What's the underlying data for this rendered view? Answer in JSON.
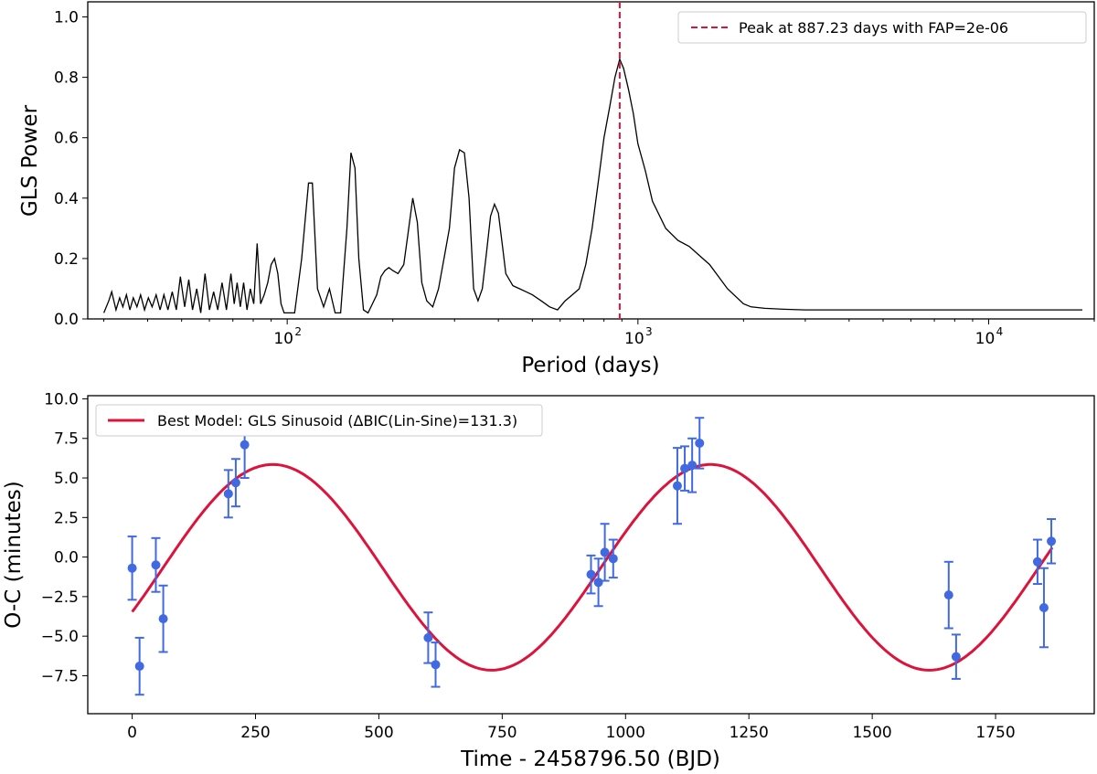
{
  "chart_data": [
    {
      "type": "line",
      "xscale": "log",
      "xlim": [
        27,
        20000
      ],
      "ylim": [
        0.0,
        1.05
      ],
      "ylabel": "GLS Power",
      "xlabel": "Period (days)",
      "yticks": [
        "0.0",
        "0.2",
        "0.4",
        "0.6",
        "0.8",
        "1.0"
      ],
      "xticks": [
        {
          "base": "10",
          "exp": "2",
          "value": 100
        },
        {
          "base": "10",
          "exp": "3",
          "value": 1000
        },
        {
          "base": "10",
          "exp": "4",
          "value": 10000
        }
      ],
      "grid": false,
      "legend": {
        "position": "top-right",
        "entries": [
          "Peak at 887.23 days with FAP=2e-06"
        ]
      },
      "peak_marker": {
        "period": 887.23,
        "style": "dashed",
        "color": "#dc143c"
      },
      "series": [
        {
          "color": "#000000",
          "x": [
            30,
            31,
            31.6,
            32.5,
            33.3,
            34,
            34.8,
            35.6,
            36.4,
            37.3,
            38.2,
            39.2,
            40.2,
            41.2,
            42.3,
            43.4,
            44.5,
            45.7,
            47,
            48.3,
            49.6,
            51,
            52.4,
            53.7,
            55.2,
            56.7,
            58.3,
            60,
            61.7,
            63.4,
            65.2,
            67.1,
            69.1,
            70.6,
            72,
            73.5,
            75.1,
            76.8,
            78.5,
            80.3,
            82.1,
            84,
            86,
            88,
            90,
            92,
            94,
            96,
            98,
            100,
            105,
            110,
            115,
            118,
            122,
            127,
            132,
            137,
            142,
            148,
            152,
            156,
            160,
            165,
            170,
            175,
            180,
            185,
            190,
            195,
            200,
            207,
            215,
            222,
            228,
            235,
            242,
            250,
            260,
            270,
            280,
            290,
            300,
            310,
            320,
            330,
            340,
            350,
            360,
            370,
            380,
            390,
            400,
            410,
            420,
            440,
            460,
            480,
            500,
            530,
            560,
            590,
            620,
            650,
            680,
            710,
            740,
            770,
            800,
            830,
            860,
            887,
            910,
            940,
            970,
            1000,
            1050,
            1100,
            1200,
            1300,
            1400,
            1600,
            1800,
            2000,
            2100,
            2300,
            2600,
            3000,
            5000,
            10000,
            18500
          ],
          "y": [
            0.02,
            0.06,
            0.09,
            0.03,
            0.07,
            0.04,
            0.08,
            0.03,
            0.07,
            0.04,
            0.08,
            0.03,
            0.07,
            0.04,
            0.08,
            0.03,
            0.08,
            0.03,
            0.09,
            0.03,
            0.14,
            0.04,
            0.13,
            0.03,
            0.1,
            0.02,
            0.15,
            0.03,
            0.09,
            0.03,
            0.12,
            0.03,
            0.15,
            0.05,
            0.12,
            0.04,
            0.12,
            0.03,
            0.1,
            0.05,
            0.25,
            0.05,
            0.08,
            0.12,
            0.18,
            0.2,
            0.15,
            0.05,
            0.02,
            0.02,
            0.02,
            0.2,
            0.45,
            0.45,
            0.1,
            0.04,
            0.1,
            0.02,
            0.02,
            0.3,
            0.55,
            0.5,
            0.2,
            0.03,
            0.02,
            0.05,
            0.08,
            0.14,
            0.16,
            0.17,
            0.16,
            0.15,
            0.18,
            0.3,
            0.4,
            0.32,
            0.12,
            0.06,
            0.04,
            0.1,
            0.2,
            0.3,
            0.5,
            0.56,
            0.55,
            0.4,
            0.1,
            0.06,
            0.1,
            0.22,
            0.34,
            0.38,
            0.35,
            0.25,
            0.15,
            0.11,
            0.1,
            0.09,
            0.08,
            0.06,
            0.04,
            0.03,
            0.06,
            0.08,
            0.1,
            0.18,
            0.3,
            0.45,
            0.6,
            0.7,
            0.8,
            0.86,
            0.83,
            0.76,
            0.68,
            0.58,
            0.49,
            0.39,
            0.3,
            0.26,
            0.24,
            0.18,
            0.1,
            0.05,
            0.04,
            0.035,
            0.032,
            0.03,
            0.03,
            0.03,
            0.03
          ]
        }
      ]
    },
    {
      "type": "scatter",
      "xlim": [
        -90,
        1950
      ],
      "ylim": [
        -9.9,
        10.2
      ],
      "xlabel": "Time - 2458796.50 (BJD)",
      "ylabel": "O-C (minutes)",
      "xticks": [
        "0",
        "250",
        "500",
        "750",
        "1000",
        "1250",
        "1500",
        "1750"
      ],
      "yticks": [
        "−7.5",
        "−5.0",
        "−2.5",
        "0.0",
        "2.5",
        "5.0",
        "7.5",
        "10.0"
      ],
      "grid": false,
      "legend": {
        "position": "top-left",
        "entries": [
          "Best Model: GLS Sinusoid (ΔBIC(Lin-Sine)=131.3)"
        ]
      },
      "model": {
        "type": "sinusoid",
        "color": "#dc143c",
        "amplitude": 6.5,
        "offset": -0.65,
        "period_days": 887.23,
        "peak_time": 285,
        "x_range": [
          0,
          1865
        ]
      },
      "series": [
        {
          "type": "scatter-errorbar",
          "color": "#4169e1",
          "points": [
            {
              "x": 0,
              "y": -0.7,
              "err": 2.0
            },
            {
              "x": 15,
              "y": -6.9,
              "err": 1.8
            },
            {
              "x": 48,
              "y": -0.5,
              "err": 1.7
            },
            {
              "x": 63,
              "y": -3.9,
              "err": 2.1
            },
            {
              "x": 195,
              "y": 4.0,
              "err": 1.5
            },
            {
              "x": 210,
              "y": 4.7,
              "err": 1.5
            },
            {
              "x": 228,
              "y": 7.1,
              "err": 2.1
            },
            {
              "x": 600,
              "y": -5.1,
              "err": 1.6
            },
            {
              "x": 615,
              "y": -6.8,
              "err": 1.4
            },
            {
              "x": 930,
              "y": -1.1,
              "err": 1.2
            },
            {
              "x": 945,
              "y": -1.6,
              "err": 1.5
            },
            {
              "x": 958,
              "y": 0.3,
              "err": 1.8
            },
            {
              "x": 975,
              "y": -0.1,
              "err": 1.2
            },
            {
              "x": 1105,
              "y": 4.5,
              "err": 2.4
            },
            {
              "x": 1120,
              "y": 5.6,
              "err": 1.4
            },
            {
              "x": 1135,
              "y": 5.8,
              "err": 1.7
            },
            {
              "x": 1150,
              "y": 7.2,
              "err": 1.6
            },
            {
              "x": 1655,
              "y": -2.4,
              "err": 2.1
            },
            {
              "x": 1670,
              "y": -6.3,
              "err": 1.4
            },
            {
              "x": 1835,
              "y": -0.3,
              "err": 1.4
            },
            {
              "x": 1848,
              "y": -3.2,
              "err": 2.5
            },
            {
              "x": 1863,
              "y": 1.0,
              "err": 1.4
            }
          ]
        }
      ]
    }
  ]
}
